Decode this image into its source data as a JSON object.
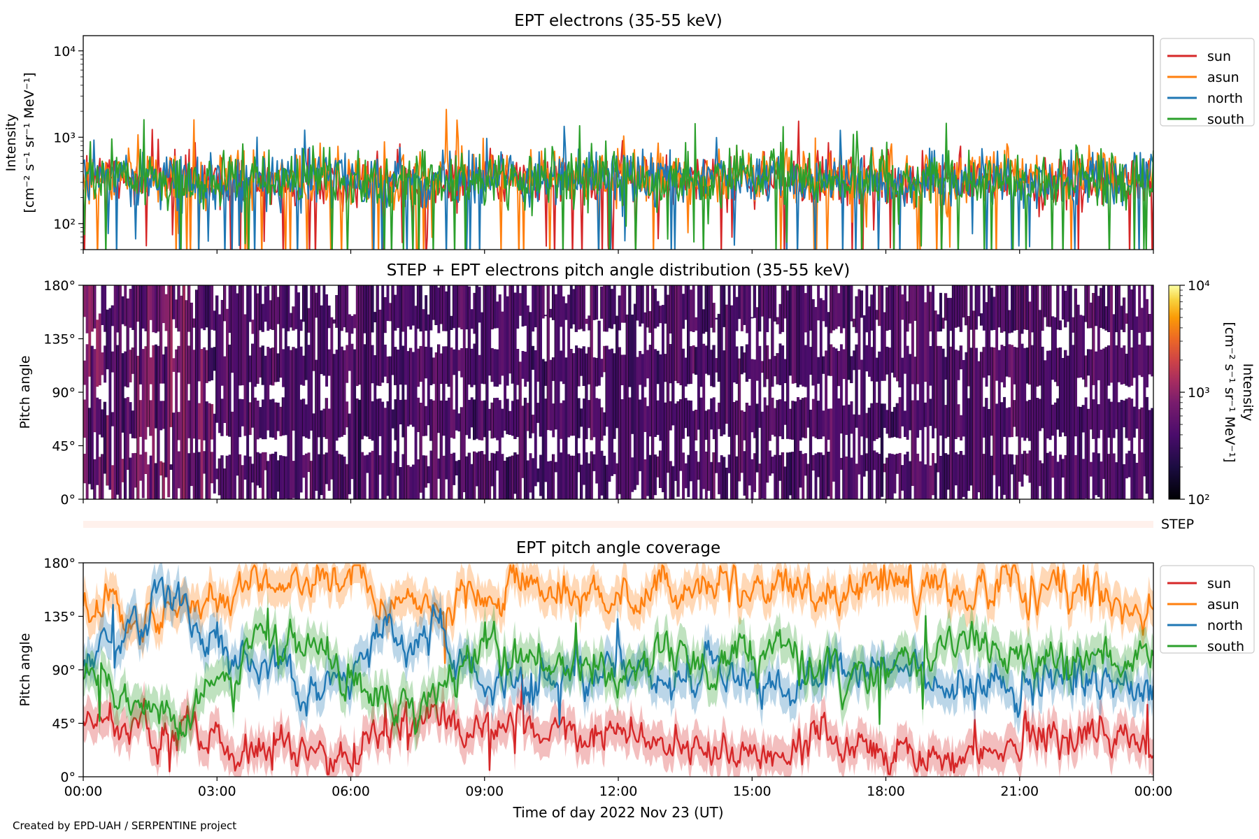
{
  "figure": {
    "footer": "Created by EPD-UAH / SERPENTINE project",
    "colors": {
      "sun": "#d62728",
      "asun": "#ff7f0e",
      "north": "#1f77b4",
      "south": "#2ca02c",
      "step_bar": "#fff1ec"
    }
  },
  "chart_data": [
    {
      "type": "line",
      "title": "EPT electrons (35-55 keV)",
      "ylabel_line1": "Intensity",
      "ylabel_line2": "[cm⁻² s⁻¹ sr⁻¹ MeV⁻¹]",
      "yscale": "log",
      "ylim": [
        50,
        15000
      ],
      "yticks": [
        {
          "value": 100,
          "label": "10²"
        },
        {
          "value": 1000,
          "label": "10³"
        },
        {
          "value": 10000,
          "label": "10⁴"
        }
      ],
      "xlim_hours": [
        0,
        24
      ],
      "legend_placement": "outside-right-top",
      "series": [
        {
          "name": "sun",
          "color": "#d62728",
          "typical": 320,
          "spread": 0.45
        },
        {
          "name": "asun",
          "color": "#ff7f0e",
          "typical": 340,
          "spread": 0.45
        },
        {
          "name": "north",
          "color": "#1f77b4",
          "typical": 330,
          "spread": 0.45
        },
        {
          "name": "south",
          "color": "#2ca02c",
          "typical": 330,
          "spread": 0.45
        }
      ]
    },
    {
      "type": "heatmap",
      "title": "STEP + EPT electrons pitch angle distribution (35-55 keV)",
      "ylabel": "Pitch angle",
      "ylim": [
        0,
        180
      ],
      "yticks": [
        {
          "value": 0,
          "label": "0°"
        },
        {
          "value": 45,
          "label": "45°"
        },
        {
          "value": 90,
          "label": "90°"
        },
        {
          "value": 135,
          "label": "135°"
        },
        {
          "value": 180,
          "label": "180°"
        }
      ],
      "colorbar": {
        "scale": "log",
        "range": [
          100,
          10000
        ],
        "ticks": [
          {
            "value": 100,
            "label": "10²"
          },
          {
            "value": 1000,
            "label": "10³"
          },
          {
            "value": 10000,
            "label": "10⁴"
          }
        ],
        "label_line1": "Intensity",
        "label_line2": "[cm⁻² s⁻¹ sr⁻¹ MeV⁻¹]",
        "colormap": "inferno"
      },
      "typical_intensity": 300
    },
    {
      "type": "bar",
      "label": "STEP"
    },
    {
      "type": "line",
      "title": "EPT pitch angle coverage",
      "ylabel": "Pitch angle",
      "ylim": [
        0,
        180
      ],
      "yticks": [
        {
          "value": 0,
          "label": "0°"
        },
        {
          "value": 45,
          "label": "45°"
        },
        {
          "value": 90,
          "label": "90°"
        },
        {
          "value": 135,
          "label": "135°"
        },
        {
          "value": 180,
          "label": "180°"
        }
      ],
      "xlabel": "Time of day 2022 Nov 23 (UT)",
      "xticks": [
        "00:00",
        "03:00",
        "06:00",
        "09:00",
        "12:00",
        "15:00",
        "18:00",
        "21:00",
        "00:00"
      ],
      "legend_placement": "outside-right-top",
      "band_width_deg": 15,
      "series": [
        {
          "name": "sun",
          "color": "#d62728",
          "x_hours": [
            0,
            1,
            2,
            3,
            4,
            5,
            6,
            7,
            8,
            9,
            10,
            11,
            12,
            13,
            14,
            15,
            16,
            17,
            18,
            19,
            20,
            21,
            22,
            23,
            24
          ],
          "y": [
            45,
            40,
            38,
            30,
            28,
            25,
            20,
            40,
            45,
            35,
            30,
            40,
            35,
            30,
            25,
            25,
            30,
            28,
            25,
            20,
            25,
            30,
            35,
            30,
            35
          ]
        },
        {
          "name": "asun",
          "color": "#ff7f0e",
          "x_hours": [
            0,
            1,
            2,
            3,
            4,
            5,
            6,
            7,
            8,
            9,
            10,
            11,
            12,
            13,
            14,
            15,
            16,
            17,
            18,
            19,
            20,
            21,
            22,
            23,
            24
          ],
          "y": [
            140,
            135,
            140,
            150,
            160,
            165,
            165,
            135,
            145,
            155,
            160,
            155,
            150,
            155,
            160,
            160,
            155,
            160,
            165,
            165,
            160,
            160,
            155,
            155,
            150
          ]
        },
        {
          "name": "north",
          "color": "#1f77b4",
          "x_hours": [
            0,
            1,
            2,
            3,
            4,
            5,
            6,
            7,
            8,
            9,
            10,
            11,
            12,
            13,
            14,
            15,
            16,
            17,
            18,
            19,
            20,
            21,
            22,
            23,
            24
          ],
          "y": [
            100,
            110,
            150,
            110,
            90,
            85,
            90,
            125,
            120,
            70,
            80,
            85,
            95,
            80,
            90,
            85,
            75,
            100,
            90,
            80,
            75,
            80,
            85,
            80,
            75
          ]
        },
        {
          "name": "south",
          "color": "#2ca02c",
          "x_hours": [
            0,
            1,
            2,
            3,
            4,
            5,
            6,
            7,
            8,
            9,
            10,
            11,
            12,
            13,
            14,
            15,
            16,
            17,
            18,
            19,
            20,
            21,
            22,
            23,
            24
          ],
          "y": [
            80,
            60,
            50,
            80,
            110,
            105,
            70,
            55,
            70,
            110,
            100,
            95,
            90,
            105,
            85,
            95,
            105,
            80,
            85,
            100,
            110,
            105,
            100,
            105,
            100
          ]
        }
      ]
    }
  ]
}
